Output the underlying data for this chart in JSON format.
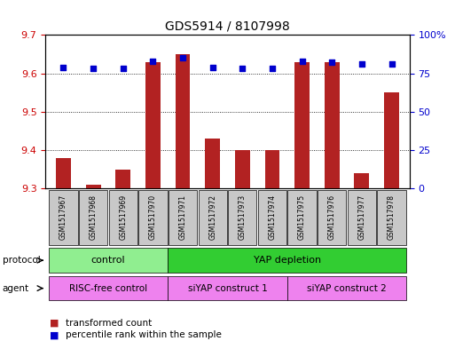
{
  "title": "GDS5914 / 8107998",
  "samples": [
    "GSM1517967",
    "GSM1517968",
    "GSM1517969",
    "GSM1517970",
    "GSM1517971",
    "GSM1517972",
    "GSM1517973",
    "GSM1517974",
    "GSM1517975",
    "GSM1517976",
    "GSM1517977",
    "GSM1517978"
  ],
  "bar_values": [
    9.38,
    9.31,
    9.35,
    9.63,
    9.65,
    9.43,
    9.4,
    9.4,
    9.63,
    9.63,
    9.34,
    9.55
  ],
  "percentile_values": [
    79,
    78,
    78,
    83,
    85,
    79,
    78,
    78,
    83,
    82,
    81,
    81
  ],
  "bar_bottom": 9.3,
  "ylim_left": [
    9.3,
    9.7
  ],
  "ylim_right": [
    0,
    100
  ],
  "yticks_left": [
    9.3,
    9.4,
    9.5,
    9.6,
    9.7
  ],
  "yticks_right": [
    0,
    25,
    50,
    75,
    100
  ],
  "ytick_right_labels": [
    "0",
    "25",
    "50",
    "75",
    "100%"
  ],
  "bar_color": "#B22222",
  "dot_color": "#0000CD",
  "bg_color": "#FFFFFF",
  "protocol_groups": [
    {
      "label": "control",
      "start": 0,
      "end": 3,
      "color": "#90EE90"
    },
    {
      "label": "YAP depletion",
      "start": 4,
      "end": 11,
      "color": "#32CD32"
    }
  ],
  "agent_groups": [
    {
      "label": "RISC-free control",
      "start": 0,
      "end": 3,
      "color": "#EE82EE"
    },
    {
      "label": "siYAP construct 1",
      "start": 4,
      "end": 7,
      "color": "#EE82EE"
    },
    {
      "label": "siYAP construct 2",
      "start": 8,
      "end": 11,
      "color": "#EE82EE"
    }
  ],
  "legend_items": [
    {
      "label": "transformed count",
      "color": "#B22222"
    },
    {
      "label": "percentile rank within the sample",
      "color": "#0000CD"
    }
  ],
  "sample_box_color": "#C8C8C8",
  "left_tick_color": "#CC0000",
  "right_tick_color": "#0000CD"
}
